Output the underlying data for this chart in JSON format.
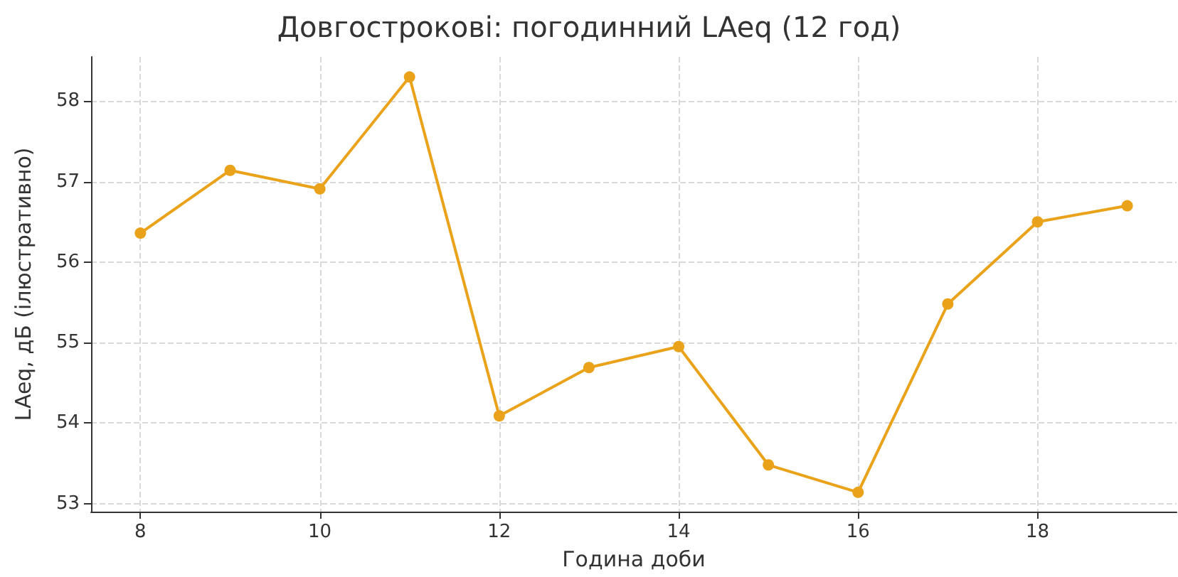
{
  "chart_data": {
    "type": "line",
    "title": "Довгострокові: погодинний LAeq (12 год)",
    "xlabel": "Година доби",
    "ylabel": "LAeq, дБ (ілюстративно)",
    "x": [
      8,
      9,
      10,
      11,
      12,
      13,
      14,
      15,
      16,
      17,
      18,
      19
    ],
    "series": [
      {
        "color": "#e9a21a",
        "values": [
          56.36,
          57.14,
          56.91,
          58.3,
          54.09,
          54.69,
          54.95,
          53.48,
          53.14,
          55.48,
          56.5,
          56.7
        ]
      }
    ],
    "xlim": [
      7.45,
      19.55
    ],
    "xticks": [
      8,
      10,
      12,
      14,
      16,
      18
    ],
    "ylim": [
      52.9,
      58.55
    ],
    "yticks": [
      53,
      54,
      55,
      56,
      57,
      58
    ],
    "grid": true,
    "marker": "circle",
    "line_style": "solid"
  }
}
